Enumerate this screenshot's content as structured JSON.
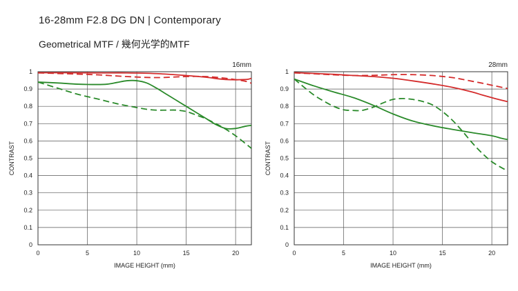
{
  "header": {
    "title": "16-28mm F2.8 DG DN | Contemporary",
    "subtitle": "Geometrical MTF / 幾何光学的MTF"
  },
  "colors": {
    "red": "#d42b2b",
    "green": "#2a8a2a",
    "grid": "#555555"
  },
  "chart_data": [
    {
      "type": "line",
      "title": "16mm",
      "xlabel": "IMAGE HEIGHT (mm)",
      "ylabel": "CONTRAST",
      "xlim": [
        0,
        21.6
      ],
      "ylim": [
        0,
        1
      ],
      "xticks": [
        0,
        5,
        10,
        15,
        20
      ],
      "yticks": [
        0,
        0.1,
        0.2,
        0.3,
        0.4,
        0.5,
        0.6,
        0.7,
        0.8,
        0.9,
        1
      ],
      "ytick_labels": [
        "0",
        "0.1",
        "0.2",
        "0.3",
        "0.4",
        "0.5",
        "0.6",
        "0.7",
        "0.8",
        "0.9",
        "1"
      ],
      "grid": true,
      "series": [
        {
          "color": "red",
          "dash": false,
          "x": [
            0,
            3,
            6,
            9,
            12,
            15,
            17,
            19,
            21,
            21.6
          ],
          "y": [
            0.994,
            0.994,
            0.993,
            0.993,
            0.989,
            0.978,
            0.968,
            0.955,
            0.955,
            0.962
          ]
        },
        {
          "color": "red",
          "dash": true,
          "x": [
            0,
            3,
            6,
            9,
            12,
            15,
            17,
            19,
            21,
            21.6
          ],
          "y": [
            0.993,
            0.988,
            0.982,
            0.972,
            0.966,
            0.972,
            0.972,
            0.962,
            0.945,
            0.933
          ]
        },
        {
          "color": "green",
          "dash": false,
          "x": [
            0,
            2,
            4,
            6,
            7,
            8,
            9,
            10,
            11,
            12,
            13,
            14,
            15,
            16,
            17,
            18,
            19,
            20,
            21,
            21.6
          ],
          "y": [
            0.94,
            0.935,
            0.928,
            0.926,
            0.928,
            0.938,
            0.948,
            0.948,
            0.935,
            0.905,
            0.87,
            0.835,
            0.8,
            0.765,
            0.73,
            0.695,
            0.672,
            0.672,
            0.685,
            0.69
          ]
        },
        {
          "color": "green",
          "dash": true,
          "x": [
            0,
            2,
            4,
            6,
            8,
            10,
            11,
            12,
            13,
            14,
            15,
            16,
            17,
            18,
            19,
            20,
            21,
            21.6
          ],
          "y": [
            0.94,
            0.905,
            0.87,
            0.843,
            0.815,
            0.793,
            0.783,
            0.778,
            0.778,
            0.778,
            0.77,
            0.75,
            0.728,
            0.7,
            0.668,
            0.63,
            0.585,
            0.557
          ]
        }
      ]
    },
    {
      "type": "line",
      "title": "28mm",
      "xlabel": "IMAGE HEIGHT (mm)",
      "ylabel": "CONTRAST",
      "xlim": [
        0,
        21.6
      ],
      "ylim": [
        0,
        1
      ],
      "xticks": [
        0,
        5,
        10,
        15,
        20
      ],
      "yticks": [
        0,
        0.1,
        0.2,
        0.3,
        0.4,
        0.5,
        0.6,
        0.7,
        0.8,
        0.9,
        1
      ],
      "ytick_labels": [
        "0",
        "0.1",
        "0.2",
        "0.3",
        "0.4",
        "0.5",
        "0.6",
        "0.7",
        "0.8",
        "0.9",
        "1"
      ],
      "grid": true,
      "series": [
        {
          "color": "red",
          "dash": false,
          "x": [
            0,
            2,
            4,
            6,
            8,
            10,
            12,
            14,
            16,
            18,
            19,
            20,
            21,
            21.6
          ],
          "y": [
            0.995,
            0.99,
            0.985,
            0.978,
            0.972,
            0.962,
            0.947,
            0.93,
            0.91,
            0.883,
            0.866,
            0.85,
            0.835,
            0.827
          ]
        },
        {
          "color": "red",
          "dash": true,
          "x": [
            0,
            2,
            4,
            6,
            8,
            10,
            12,
            14,
            16,
            17,
            18,
            19,
            20,
            21,
            21.6
          ],
          "y": [
            0.993,
            0.988,
            0.982,
            0.978,
            0.979,
            0.983,
            0.983,
            0.978,
            0.966,
            0.956,
            0.945,
            0.934,
            0.922,
            0.91,
            0.903
          ]
        },
        {
          "color": "green",
          "dash": false,
          "x": [
            0,
            2,
            4,
            6,
            8,
            10,
            12,
            14,
            16,
            18,
            20,
            21,
            21.6
          ],
          "y": [
            0.958,
            0.918,
            0.883,
            0.85,
            0.806,
            0.756,
            0.715,
            0.688,
            0.667,
            0.648,
            0.63,
            0.615,
            0.608
          ]
        },
        {
          "color": "green",
          "dash": true,
          "x": [
            0,
            1,
            2,
            3,
            4,
            5,
            6,
            6.5,
            7,
            8,
            9,
            10,
            11,
            12,
            13,
            14,
            15,
            16,
            17,
            18,
            19,
            20,
            21,
            21.6
          ],
          "y": [
            0.958,
            0.91,
            0.865,
            0.83,
            0.8,
            0.78,
            0.776,
            0.775,
            0.778,
            0.795,
            0.82,
            0.84,
            0.845,
            0.84,
            0.828,
            0.808,
            0.77,
            0.72,
            0.658,
            0.59,
            0.53,
            0.48,
            0.445,
            0.427
          ]
        }
      ]
    }
  ]
}
